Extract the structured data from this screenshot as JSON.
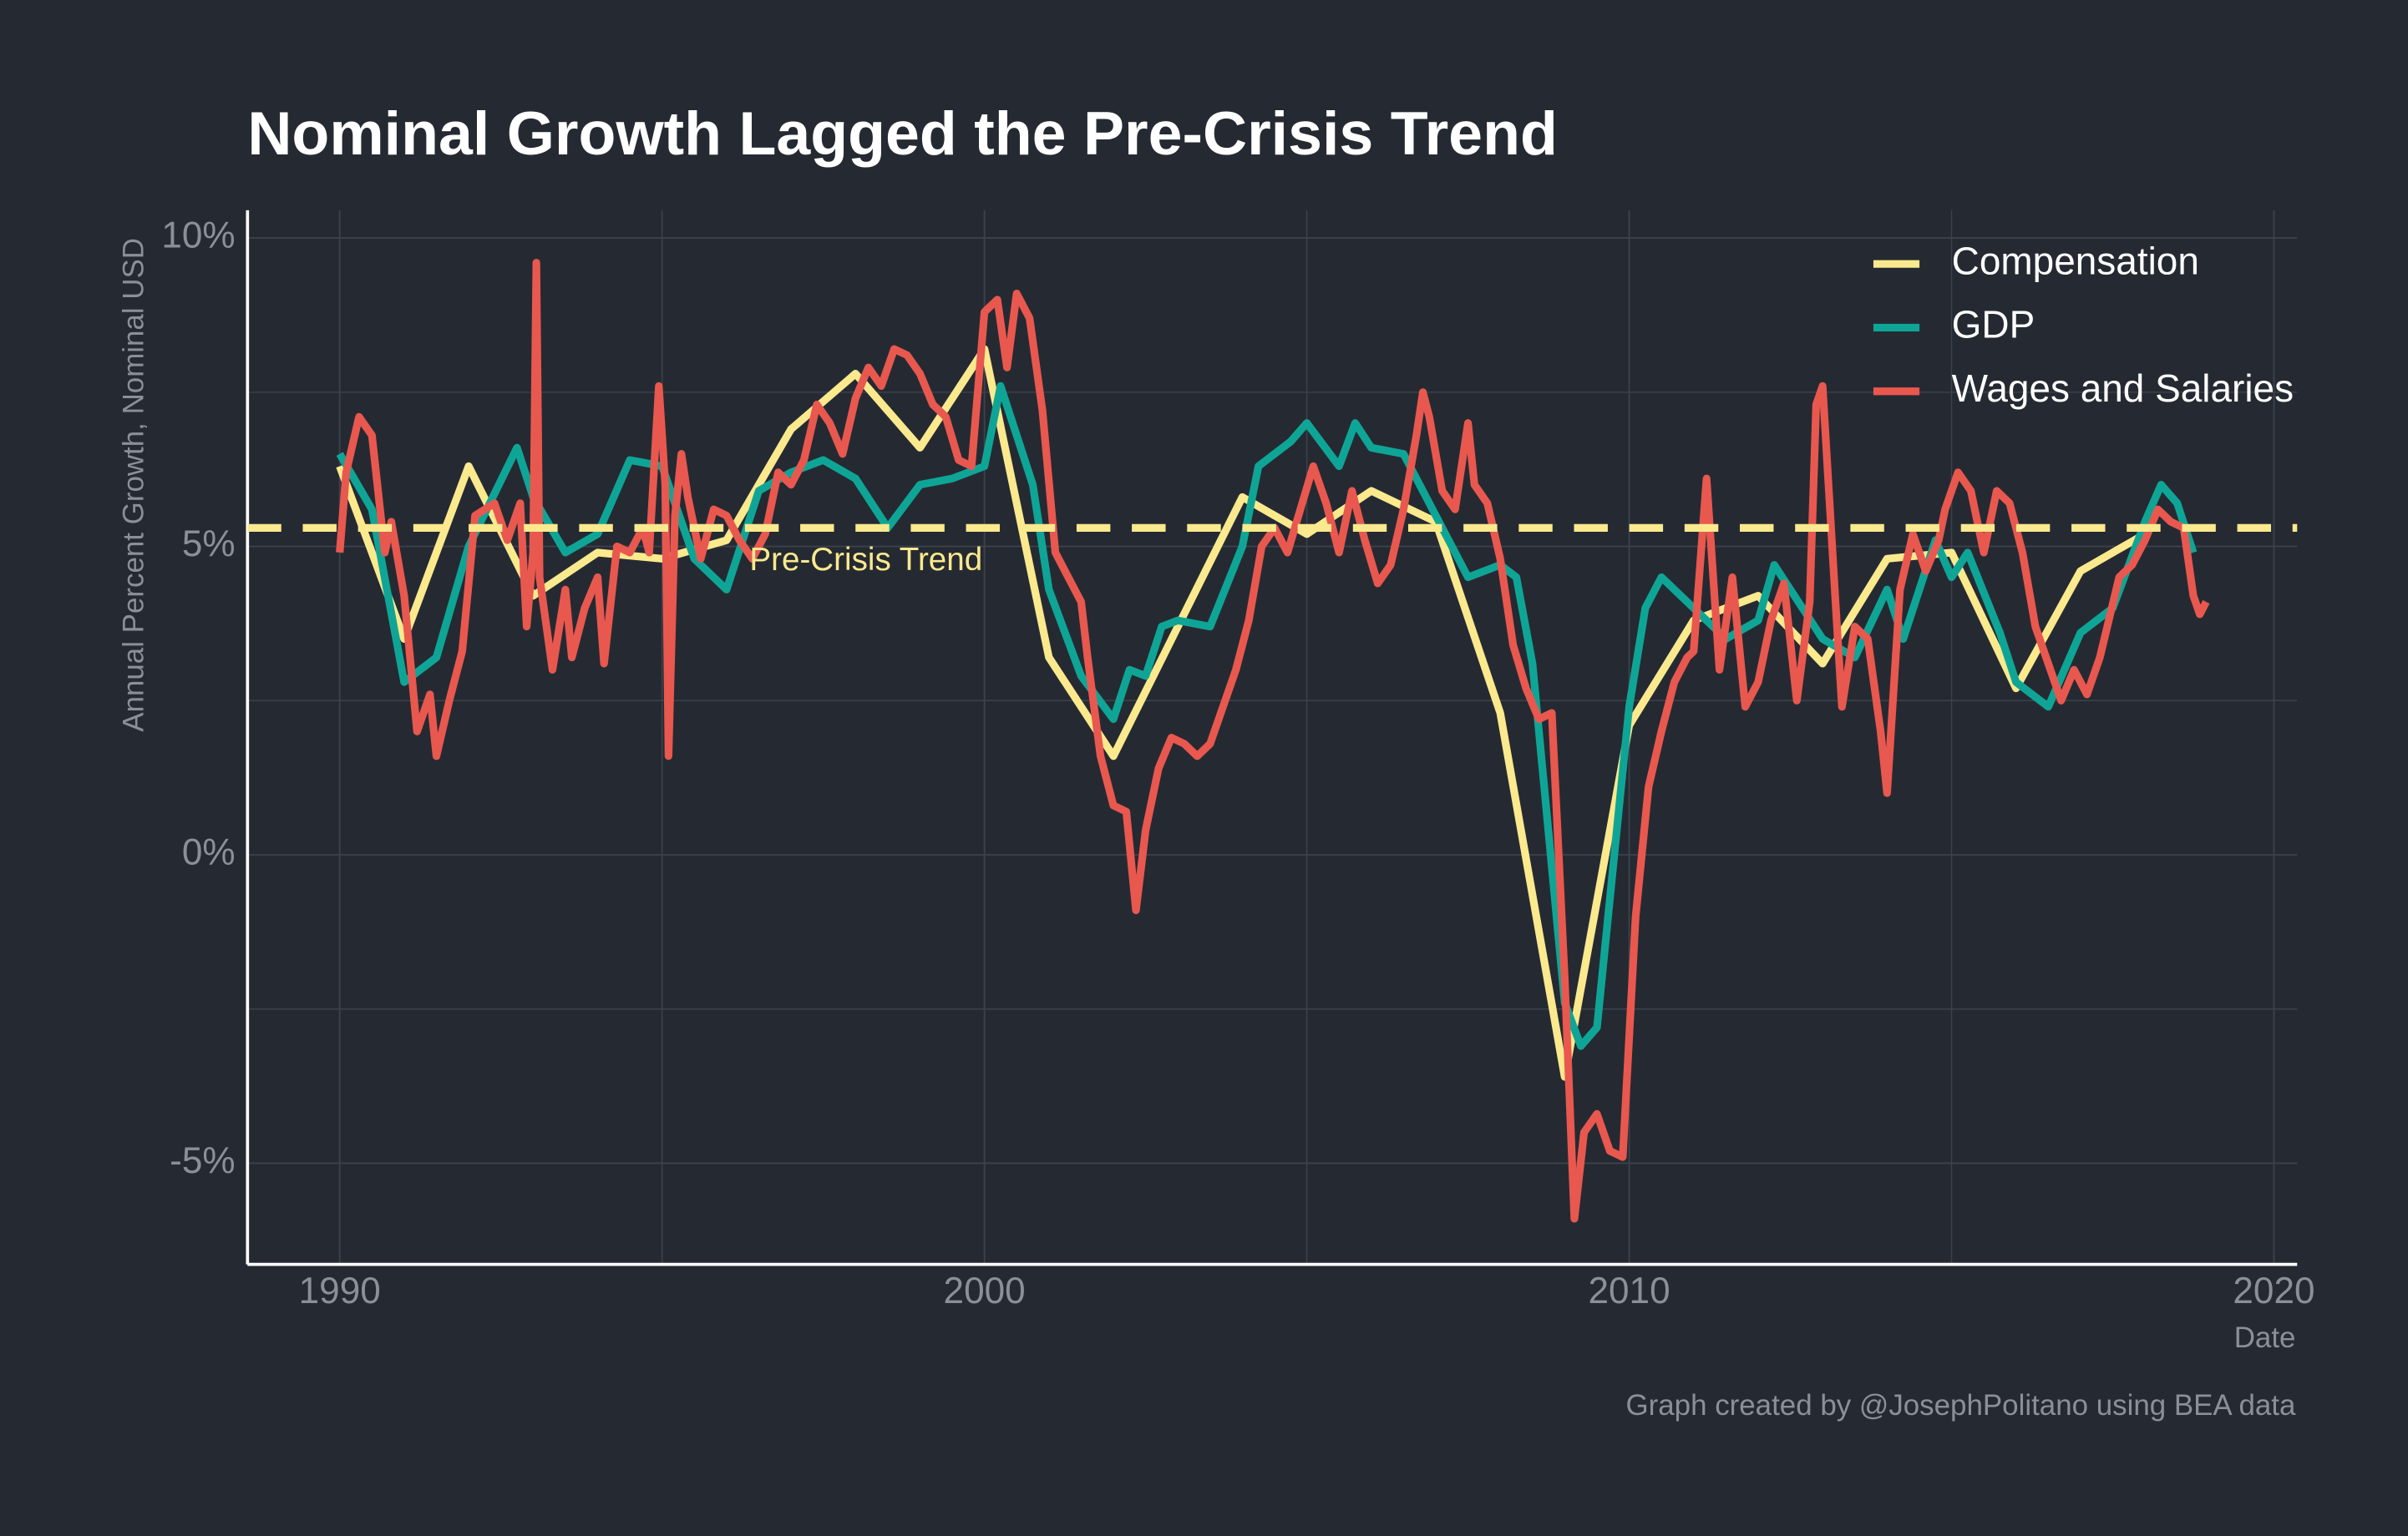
{
  "chart_data": {
    "type": "line",
    "title": "Nominal Growth Lagged the Pre-Crisis Trend",
    "y_label": "Annual Percent Growth, Nominal USD",
    "x_label": "Date",
    "caption": "Graph created by @JosephPolitano using BEA data",
    "xlim": [
      1988.57,
      2020.36
    ],
    "ylim": [
      -6.64,
      10.45
    ],
    "xticks": [
      1990,
      2000,
      2010,
      2020
    ],
    "yticks": [
      {
        "value": -5,
        "label": "-5%"
      },
      {
        "value": 0,
        "label": "0%"
      },
      {
        "value": 5,
        "label": "5%"
      },
      {
        "value": 10,
        "label": "10%"
      }
    ],
    "x_minor_grid": [
      1995,
      2005,
      2015
    ],
    "y_minor_grid": [
      -2.5,
      2.5,
      7.5
    ],
    "grid": true,
    "legend": "top-right",
    "trend": {
      "value": 5.3,
      "label": "Pre-Crisis Trend",
      "color": "#fbe98e"
    },
    "series": [
      {
        "name": "Compensation",
        "color": "#fbe98e",
        "x": [
          1990,
          1991,
          1992,
          1993,
          1994,
          1995,
          1996,
          1997,
          1998,
          1999,
          2000,
          2001,
          2002,
          2003,
          2004,
          2005,
          2006,
          2007,
          2008,
          2009,
          2010,
          2011,
          2012,
          2013,
          2014,
          2015,
          2016,
          2017,
          2018
        ],
        "values": [
          6.3,
          3.5,
          6.3,
          4.2,
          4.9,
          4.8,
          5.1,
          6.9,
          7.8,
          6.6,
          8.2,
          3.2,
          1.6,
          3.7,
          5.8,
          5.2,
          5.9,
          5.4,
          2.3,
          -3.6,
          2.1,
          3.8,
          4.2,
          3.1,
          4.8,
          4.9,
          2.7,
          4.6,
          5.2
        ]
      },
      {
        "name": "GDP",
        "color": "#0fa596",
        "x": [
          1990.0,
          1990.5,
          1991.0,
          1991.5,
          1992.0,
          1992.75,
          1993.0,
          1993.5,
          1994.0,
          1994.5,
          1995.0,
          1995.5,
          1996.0,
          1996.5,
          1997.0,
          1997.5,
          1998.0,
          1998.5,
          1999.0,
          1999.5,
          2000.0,
          2000.25,
          2000.75,
          2001.0,
          2001.5,
          2002.0,
          2002.25,
          2002.5,
          2002.75,
          2003.0,
          2003.5,
          2004.0,
          2004.25,
          2004.75,
          2005.0,
          2005.5,
          2005.75,
          2006.0,
          2006.5,
          2007.0,
          2007.5,
          2008.0,
          2008.25,
          2008.5,
          2009.0,
          2009.25,
          2009.5,
          2010.0,
          2010.25,
          2010.5,
          2011.0,
          2011.5,
          2012.0,
          2012.25,
          2012.5,
          2013.0,
          2013.5,
          2014.0,
          2014.25,
          2014.75,
          2015.0,
          2015.25,
          2015.75,
          2016.0,
          2016.5,
          2017.0,
          2017.5,
          2018.0,
          2018.25,
          2018.5,
          2018.75
        ],
        "values": [
          6.5,
          5.6,
          2.8,
          3.2,
          5.0,
          6.6,
          5.8,
          4.9,
          5.2,
          6.4,
          6.3,
          4.8,
          4.3,
          5.9,
          6.2,
          6.4,
          6.1,
          5.3,
          6.0,
          6.1,
          6.3,
          7.6,
          6.0,
          4.3,
          2.9,
          2.2,
          3.0,
          2.9,
          3.7,
          3.8,
          3.7,
          5.0,
          6.3,
          6.7,
          7.0,
          6.3,
          7.0,
          6.6,
          6.5,
          5.5,
          4.5,
          4.7,
          4.5,
          3.1,
          -2.4,
          -3.1,
          -2.8,
          2.4,
          4.0,
          4.5,
          4.0,
          3.5,
          3.8,
          4.7,
          4.3,
          3.5,
          3.2,
          4.3,
          3.5,
          5.1,
          4.5,
          4.9,
          3.6,
          2.8,
          2.4,
          3.6,
          4.0,
          5.4,
          6.0,
          5.7,
          4.9
        ]
      },
      {
        "name": "Wages and Salaries",
        "color": "#e8584f",
        "x": [
          1990.0,
          1990.1,
          1990.3,
          1990.5,
          1990.7,
          1990.8,
          1991.0,
          1991.2,
          1991.4,
          1991.5,
          1991.7,
          1991.9,
          1992.1,
          1992.4,
          1992.6,
          1992.8,
          1992.9,
          1993.0,
          1993.05,
          1993.1,
          1993.3,
          1993.5,
          1993.6,
          1993.8,
          1994.0,
          1994.1,
          1994.3,
          1994.5,
          1994.7,
          1994.8,
          1994.95,
          1995.05,
          1995.1,
          1995.2,
          1995.3,
          1995.4,
          1995.6,
          1995.8,
          1996.0,
          1996.2,
          1996.4,
          1996.6,
          1996.8,
          1997.0,
          1997.2,
          1997.4,
          1997.6,
          1997.8,
          1998.0,
          1998.2,
          1998.4,
          1998.6,
          1998.8,
          1999.0,
          1999.2,
          1999.4,
          1999.6,
          1999.8,
          2000.0,
          2000.2,
          2000.35,
          2000.5,
          2000.7,
          2000.9,
          2001.1,
          2001.3,
          2001.5,
          2001.6,
          2001.8,
          2002.0,
          2002.2,
          2002.35,
          2002.5,
          2002.7,
          2002.9,
          2003.1,
          2003.3,
          2003.5,
          2003.7,
          2003.9,
          2004.1,
          2004.3,
          2004.5,
          2004.7,
          2004.9,
          2005.1,
          2005.3,
          2005.5,
          2005.7,
          2005.9,
          2006.1,
          2006.3,
          2006.5,
          2006.7,
          2006.8,
          2006.9,
          2007.1,
          2007.3,
          2007.5,
          2007.6,
          2007.8,
          2008.0,
          2008.2,
          2008.4,
          2008.6,
          2008.8,
          2009.0,
          2009.15,
          2009.3,
          2009.5,
          2009.7,
          2009.9,
          2010.1,
          2010.3,
          2010.5,
          2010.7,
          2010.9,
          2011.0,
          2011.2,
          2011.4,
          2011.6,
          2011.8,
          2012.0,
          2012.2,
          2012.4,
          2012.6,
          2012.8,
          2012.9,
          2013.0,
          2013.2,
          2013.3,
          2013.5,
          2013.7,
          2013.9,
          2014.0,
          2014.2,
          2014.4,
          2014.6,
          2014.8,
          2014.9,
          2015.1,
          2015.3,
          2015.5,
          2015.7,
          2015.9,
          2016.1,
          2016.3,
          2016.5,
          2016.7,
          2016.9,
          2017.1,
          2017.3,
          2017.6,
          2017.8,
          2018.0,
          2018.2,
          2018.4,
          2018.6,
          2018.75,
          2018.85,
          2018.95
        ],
        "values": [
          4.9,
          6.2,
          7.1,
          6.8,
          4.9,
          5.4,
          4.2,
          2.0,
          2.6,
          1.6,
          2.5,
          3.3,
          5.5,
          5.7,
          5.1,
          5.7,
          3.7,
          4.9,
          9.6,
          4.5,
          3.0,
          4.3,
          3.2,
          4.0,
          4.5,
          3.1,
          5.0,
          4.9,
          5.3,
          4.9,
          7.6,
          6.0,
          1.6,
          5.5,
          6.5,
          5.8,
          4.8,
          5.6,
          5.5,
          5.1,
          4.8,
          5.2,
          6.2,
          6.0,
          6.4,
          7.3,
          7.0,
          6.5,
          7.4,
          7.9,
          7.6,
          8.2,
          8.1,
          7.8,
          7.3,
          7.1,
          6.4,
          6.3,
          8.8,
          9.0,
          7.9,
          9.1,
          8.7,
          7.2,
          4.9,
          4.5,
          4.1,
          3.2,
          1.6,
          0.8,
          0.7,
          -0.9,
          0.4,
          1.4,
          1.9,
          1.8,
          1.6,
          1.8,
          2.4,
          3.0,
          3.8,
          5.0,
          5.3,
          4.9,
          5.6,
          6.3,
          5.7,
          4.9,
          5.9,
          5.1,
          4.4,
          4.7,
          5.6,
          6.8,
          7.5,
          7.1,
          5.9,
          5.6,
          7.0,
          6.0,
          5.7,
          4.8,
          3.4,
          2.7,
          2.2,
          2.3,
          -2.0,
          -5.9,
          -4.5,
          -4.2,
          -4.8,
          -4.9,
          -1.0,
          1.1,
          2.0,
          2.8,
          3.2,
          3.3,
          6.1,
          3.0,
          4.5,
          2.4,
          2.8,
          3.8,
          4.4,
          2.5,
          4.1,
          7.3,
          7.6,
          4.1,
          2.4,
          3.7,
          3.5,
          2.0,
          1.0,
          4.3,
          5.2,
          4.6,
          5.1,
          5.6,
          6.2,
          5.9,
          4.9,
          5.9,
          5.7,
          4.9,
          3.7,
          3.1,
          2.5,
          3.0,
          2.6,
          3.2,
          4.5,
          4.7,
          5.1,
          5.6,
          5.4,
          5.3,
          4.2,
          3.9,
          4.1
        ]
      }
    ]
  }
}
